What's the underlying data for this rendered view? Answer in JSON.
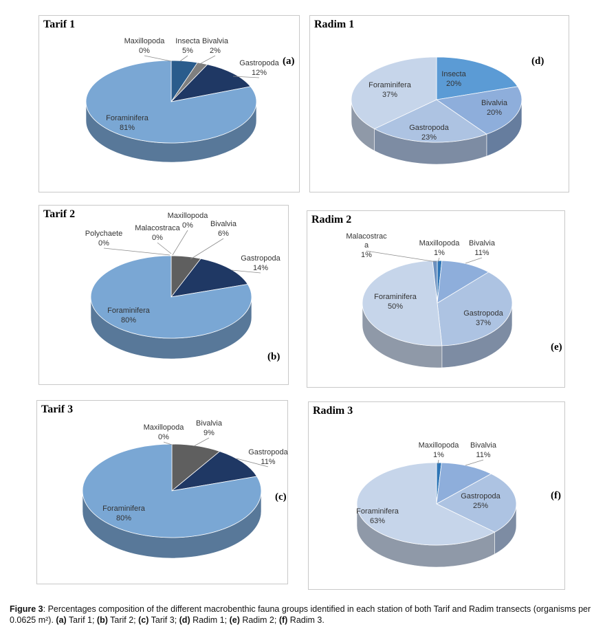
{
  "chart_data": [
    {
      "type": "pie",
      "title": "Tarif 1",
      "panel_letter": "(a)",
      "slices": [
        {
          "label": "Maxillopoda",
          "value": 0,
          "pct_label": "0%",
          "color": "#2f5d8a"
        },
        {
          "label": "Insecta",
          "value": 5,
          "pct_label": "5%",
          "color": "#2a5c8c"
        },
        {
          "label": "Bivalvia",
          "value": 2,
          "pct_label": "2%",
          "color": "#7f7f7f"
        },
        {
          "label": "Gastropoda",
          "value": 12,
          "pct_label": "12%",
          "color": "#1f3864"
        },
        {
          "label": "Foraminifera",
          "value": 81,
          "pct_label": "81%",
          "color": "#7aa7d4"
        }
      ]
    },
    {
      "type": "pie",
      "title": "Tarif 2",
      "panel_letter": "(b)",
      "slices": [
        {
          "label": "Polychaete",
          "value": 0,
          "pct_label": "0%",
          "color": "#9e9e9e"
        },
        {
          "label": "Malacostraca",
          "value": 0,
          "pct_label": "0%",
          "color": "#a5a5a5"
        },
        {
          "label": "Maxillopoda",
          "value": 0,
          "pct_label": "0%",
          "color": "#2f5d8a"
        },
        {
          "label": "Bivalvia",
          "value": 6,
          "pct_label": "6%",
          "color": "#5f5f5f"
        },
        {
          "label": "Gastropoda",
          "value": 14,
          "pct_label": "14%",
          "color": "#1f3864"
        },
        {
          "label": "Foraminifera",
          "value": 80,
          "pct_label": "80%",
          "color": "#7aa7d4"
        }
      ]
    },
    {
      "type": "pie",
      "title": "Tarif 3",
      "panel_letter": "(c)",
      "slices": [
        {
          "label": "Maxillopoda",
          "value": 0,
          "pct_label": "0%",
          "color": "#2f5d8a"
        },
        {
          "label": "Bivalvia",
          "value": 9,
          "pct_label": "9%",
          "color": "#5f5f5f"
        },
        {
          "label": "Gastropoda",
          "value": 11,
          "pct_label": "11%",
          "color": "#1f3864"
        },
        {
          "label": "Foraminifera",
          "value": 80,
          "pct_label": "80%",
          "color": "#7aa7d4"
        }
      ]
    },
    {
      "type": "pie",
      "title": "Radim 1",
      "panel_letter": "(d)",
      "slices": [
        {
          "label": "Insecta",
          "value": 20,
          "pct_label": "20%",
          "color": "#5b9bd5"
        },
        {
          "label": "Bivalvia",
          "value": 20,
          "pct_label": "20%",
          "color": "#8eaedb"
        },
        {
          "label": "Gastropoda",
          "value": 23,
          "pct_label": "23%",
          "color": "#adc3e2"
        },
        {
          "label": "Foraminifera",
          "value": 37,
          "pct_label": "37%",
          "color": "#c6d5ea"
        }
      ]
    },
    {
      "type": "pie",
      "title": "Radim 2",
      "panel_letter": "(e)",
      "slices": [
        {
          "label": "Maxillopoda",
          "value": 1,
          "pct_label": "1%",
          "color": "#2e75b6"
        },
        {
          "label": "Bivalvia",
          "value": 11,
          "pct_label": "11%",
          "color": "#8eaedb"
        },
        {
          "label": "Gastropoda",
          "value": 37,
          "pct_label": "37%",
          "color": "#adc3e2"
        },
        {
          "label": "Foraminifera",
          "value": 50,
          "pct_label": "50%",
          "color": "#c6d5ea"
        },
        {
          "label": "Malacostrac a",
          "value": 1,
          "pct_label": "1%",
          "color": "#6a90c0"
        }
      ]
    },
    {
      "type": "pie",
      "title": "Radim 3",
      "panel_letter": "(f)",
      "slices": [
        {
          "label": "Maxillopoda",
          "value": 1,
          "pct_label": "1%",
          "color": "#2e75b6"
        },
        {
          "label": "Bivalvia",
          "value": 11,
          "pct_label": "11%",
          "color": "#8eaedb"
        },
        {
          "label": "Gastropoda",
          "value": 25,
          "pct_label": "25%",
          "color": "#adc3e2"
        },
        {
          "label": "Foraminifera",
          "value": 63,
          "pct_label": "63%",
          "color": "#c6d5ea"
        }
      ]
    }
  ],
  "caption": {
    "figure_label": "Figure 3",
    "text": ": Percentages composition of the different macrobenthic fauna groups identified in each station of both Tarif and Radim transects (organisms per 0.0625 m²).",
    "parts": [
      {
        "label": "(a)",
        "text": " Tarif 1; "
      },
      {
        "label": "(b)",
        "text": " Tarif 2; "
      },
      {
        "label": "(c)",
        "text": " Tarif 3; "
      },
      {
        "label": "(d)",
        "text": " Radim 1; "
      },
      {
        "label": "(e)",
        "text": " Radim 2; "
      },
      {
        "label": "(f)",
        "text": " Radim 3."
      }
    ]
  }
}
